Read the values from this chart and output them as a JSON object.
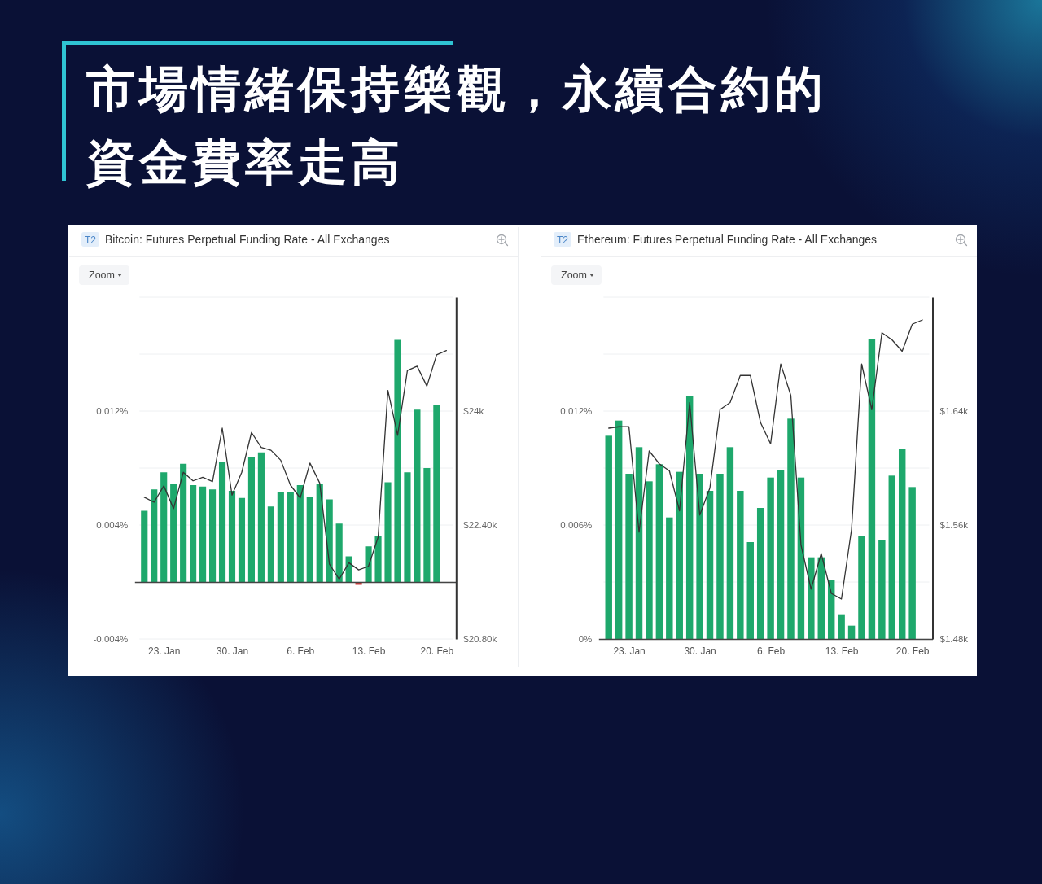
{
  "chart_data": [
    {
      "type": "other",
      "title": "市場情緒保持樂觀，永續合約的資金費率走高"
    },
    {
      "type": "bar",
      "title": "Bitcoin: Futures Perpetual Funding Rate - All Exchanges",
      "annotations": [
        "T2",
        "Zoom"
      ],
      "x": [
        "--01-21",
        "--01-22",
        "--01-23",
        "--01-24",
        "--01-25",
        "--01-26",
        "--01-27",
        "--01-28",
        "--01-29",
        "--01-30",
        "--01-31",
        "--02-01",
        "--02-02",
        "--02-03",
        "--02-04",
        "--02-05",
        "--02-06",
        "--02-07",
        "--02-08",
        "--02-09",
        "--02-10",
        "--02-11",
        "--02-12",
        "--02-13",
        "--02-14",
        "--02-15",
        "--02-16",
        "--02-17",
        "--02-18",
        "--02-19",
        "--02-20"
      ],
      "series": [
        {
          "colors": [
            "#1ea86c",
            "#1ea86c",
            "#1ea86c",
            "#1ea86c",
            "#1ea86c",
            "#1ea86c",
            "#1ea86c",
            "#1ea86c",
            "#1ea86c",
            "#1ea86c",
            "#1ea86c",
            "#1ea86c",
            "#1ea86c",
            "#1ea86c",
            "#1ea86c",
            "#1ea86c",
            "#1ea86c",
            "#1ea86c",
            "#1ea86c",
            "#1ea86c",
            "#1ea86c",
            "#1ea86c",
            "#d63a3a",
            "#1ea86c",
            "#1ea86c",
            "#1ea86c",
            "#1ea86c",
            "#1ea86c",
            "#1ea86c",
            "#1ea86c",
            "#1ea86c"
          ],
          "values": [
            0.005,
            0.0065,
            0.0077,
            0.0069,
            0.0083,
            0.0068,
            0.0067,
            0.0065,
            0.0084,
            0.0064,
            0.0059,
            0.0088,
            0.0091,
            0.0053,
            0.0063,
            0.0063,
            0.0068,
            0.006,
            0.0069,
            0.0058,
            0.0041,
            0.0018,
            -0.0002,
            0.0025,
            0.0032,
            0.007,
            0.017,
            0.0077,
            0.0121,
            0.008,
            0.0124
          ]
        },
        {
          "type": "line",
          "axis": "y2",
          "color": "#333333",
          "x": [
            "--01-21",
            "--01-22",
            "--01-23",
            "--01-24",
            "--01-25",
            "--01-26",
            "--01-27",
            "--01-28",
            "--01-29",
            "--01-30",
            "--01-31",
            "--02-01",
            "--02-02",
            "--02-03",
            "--02-04",
            "--02-05",
            "--02-06",
            "--02-07",
            "--02-08",
            "--02-09",
            "--02-10",
            "--02-11",
            "--02-12",
            "--02-13",
            "--02-14",
            "--02-15",
            "--02-16",
            "--02-17",
            "--02-18",
            "--02-19",
            "--02-20",
            "--02-21"
          ],
          "values": [
            22790,
            22720,
            22950,
            22630,
            23140,
            23020,
            23070,
            23010,
            23760,
            22820,
            23140,
            23700,
            23490,
            23450,
            23310,
            22960,
            22780,
            23270,
            22990,
            21850,
            21640,
            21870,
            21770,
            21820,
            22230,
            24290,
            23660,
            24570,
            24630,
            24350,
            24790,
            24850
          ]
        }
      ],
      "xlim": [
        "--01-20",
        "--02-22"
      ],
      "xticks": [
        {
          "value": "--01-23",
          "label": "23. Jan"
        },
        {
          "value": "--01-30",
          "label": "30. Jan"
        },
        {
          "value": "--02-06",
          "label": "6. Feb"
        },
        {
          "value": "--02-13",
          "label": "13. Feb"
        },
        {
          "value": "--02-20",
          "label": "20. Feb"
        }
      ],
      "ylim": [
        -0.004,
        0.02
      ],
      "yticks": [
        {
          "value": -0.004,
          "label": "-0.004%"
        },
        {
          "value": 0,
          "label": null
        },
        {
          "value": 0.004,
          "label": "0.004%"
        },
        {
          "value": 0.008,
          "label": null
        },
        {
          "value": 0.012,
          "label": "0.012%"
        },
        {
          "value": 0.016,
          "label": null
        },
        {
          "value": 0.02,
          "label": null
        }
      ],
      "y2lim": [
        20800,
        25600
      ],
      "y2ticks": [
        {
          "value": 20800,
          "label": "$20.80k"
        },
        {
          "value": 22400,
          "label": "$22.40k"
        },
        {
          "value": 24000,
          "label": "$24k"
        }
      ],
      "grid": "y"
    },
    {
      "type": "bar",
      "title": "Ethereum: Futures Perpetual Funding Rate - All Exchanges",
      "annotations": [
        "T2",
        "Zoom"
      ],
      "x": [
        "--01-21",
        "--01-22",
        "--01-23",
        "--01-24",
        "--01-25",
        "--01-26",
        "--01-27",
        "--01-28",
        "--01-29",
        "--01-30",
        "--01-31",
        "--02-01",
        "--02-02",
        "--02-03",
        "--02-04",
        "--02-05",
        "--02-06",
        "--02-07",
        "--02-08",
        "--02-09",
        "--02-10",
        "--02-11",
        "--02-12",
        "--02-13",
        "--02-14",
        "--02-15",
        "--02-16",
        "--02-17",
        "--02-18",
        "--02-19",
        "--02-20"
      ],
      "series": [
        {
          "color": "#1ea86c",
          "values": [
            0.0107,
            0.0115,
            0.0087,
            0.0101,
            0.0083,
            0.0092,
            0.0064,
            0.0088,
            0.0128,
            0.0087,
            0.0078,
            0.0087,
            0.0101,
            0.0078,
            0.0051,
            0.0069,
            0.0085,
            0.0089,
            0.0116,
            0.0085,
            0.0043,
            0.0043,
            0.0031,
            0.0013,
            0.0007,
            0.0054,
            0.0158,
            0.0052,
            0.0086,
            0.01,
            0.008
          ]
        },
        {
          "type": "line",
          "axis": "y2",
          "color": "#333333",
          "x": [
            "--01-21",
            "--01-22",
            "--01-23",
            "--01-24",
            "--01-25",
            "--01-26",
            "--01-27",
            "--01-28",
            "--01-29",
            "--01-30",
            "--01-31",
            "--02-01",
            "--02-02",
            "--02-03",
            "--02-04",
            "--02-05",
            "--02-06",
            "--02-07",
            "--02-08",
            "--02-09",
            "--02-10",
            "--02-11",
            "--02-12",
            "--02-13",
            "--02-14",
            "--02-15",
            "--02-16",
            "--02-17",
            "--02-18",
            "--02-19",
            "--02-20",
            "--02-21"
          ],
          "values": [
            1628,
            1629,
            1629,
            1555,
            1612,
            1603,
            1598,
            1570,
            1646,
            1567,
            1586,
            1641,
            1646,
            1665,
            1665,
            1632,
            1617,
            1673,
            1651,
            1546,
            1515,
            1540,
            1512,
            1508,
            1557,
            1673,
            1641,
            1695,
            1690,
            1682,
            1701,
            1704
          ]
        }
      ],
      "xlim": [
        "--01-20",
        "--02-22"
      ],
      "xticks": [
        {
          "value": "--01-23",
          "label": "23. Jan"
        },
        {
          "value": "--01-30",
          "label": "30. Jan"
        },
        {
          "value": "--02-06",
          "label": "6. Feb"
        },
        {
          "value": "--02-13",
          "label": "13. Feb"
        },
        {
          "value": "--02-20",
          "label": "20. Feb"
        }
      ],
      "ylim": [
        0,
        0.018
      ],
      "yticks": [
        {
          "value": 0,
          "label": "0%"
        },
        {
          "value": 0.003,
          "label": null
        },
        {
          "value": 0.006,
          "label": "0.006%"
        },
        {
          "value": 0.009,
          "label": null
        },
        {
          "value": 0.012,
          "label": "0.012%"
        },
        {
          "value": 0.015,
          "label": null
        },
        {
          "value": 0.018,
          "label": null
        }
      ],
      "y2lim": [
        1480,
        1720
      ],
      "y2ticks": [
        {
          "value": 1480,
          "label": "$1.48k"
        },
        {
          "value": 1560,
          "label": "$1.56k"
        },
        {
          "value": 1640,
          "label": "$1.64k"
        }
      ],
      "grid": "y"
    }
  ]
}
